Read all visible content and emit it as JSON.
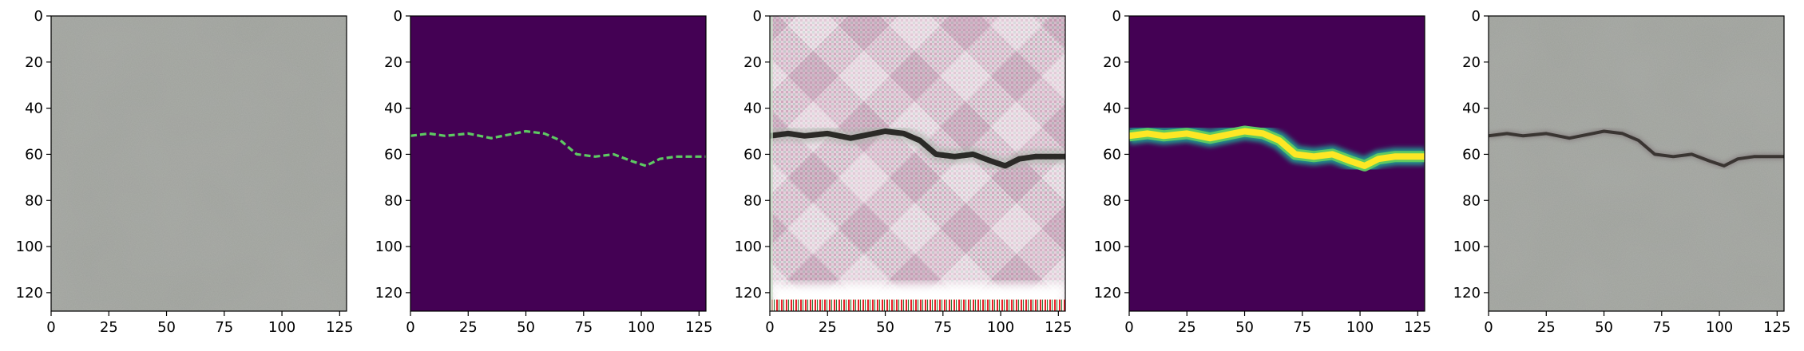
{
  "figure": {
    "panels": [
      {
        "id": "input-texture",
        "kind": "concrete"
      },
      {
        "id": "mask-thin",
        "kind": "mask_thin"
      },
      {
        "id": "generated-crack",
        "kind": "generated"
      },
      {
        "id": "mask-soft",
        "kind": "mask_soft"
      },
      {
        "id": "blended-result",
        "kind": "blended"
      }
    ],
    "x_ticks": [
      "0",
      "25",
      "50",
      "75",
      "100",
      "125"
    ],
    "y_ticks": [
      "0",
      "20",
      "40",
      "60",
      "80",
      "100",
      "120"
    ],
    "x_tick_values": [
      0,
      25,
      50,
      75,
      100,
      125
    ],
    "y_tick_values": [
      0,
      20,
      40,
      60,
      80,
      100,
      120
    ],
    "image_extent": [
      0,
      128
    ],
    "crack_path": [
      [
        0,
        52
      ],
      [
        8,
        51
      ],
      [
        15,
        52
      ],
      [
        25,
        51
      ],
      [
        35,
        53
      ],
      [
        45,
        51
      ],
      [
        50,
        50
      ],
      [
        58,
        51
      ],
      [
        65,
        54
      ],
      [
        72,
        60
      ],
      [
        80,
        61
      ],
      [
        88,
        60
      ],
      [
        96,
        63
      ],
      [
        102,
        65
      ],
      [
        108,
        62
      ],
      [
        115,
        61
      ],
      [
        125,
        61
      ],
      [
        128,
        61
      ]
    ],
    "colors": {
      "viridis_dark": "#440154",
      "viridis_yellow": "#fde725",
      "viridis_green": "#5ec962",
      "concrete": "#9c9f99",
      "crack_dark": "#3a3532"
    }
  }
}
